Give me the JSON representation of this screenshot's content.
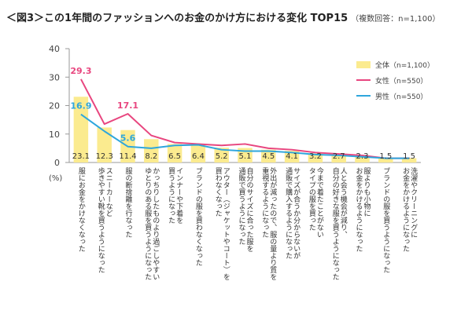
{
  "header": {
    "title": "＜図3＞この1年間のファッションへのお金のかけ方における変化 TOP15",
    "note": "（複数回答：n=1,100）"
  },
  "unit_label": "(%)",
  "colors": {
    "bar": "#fbeb8f",
    "female": "#e8467f",
    "male": "#2ea6dc",
    "axis": "#999999",
    "female_label": "#e8467f",
    "male_label": "#2ea6dc"
  },
  "legend": {
    "total": "全体（n=1,100）",
    "female": "女性（n=550）",
    "male": "男性（n=550）"
  },
  "chart_data": {
    "type": "bar",
    "ylim": [
      0,
      40
    ],
    "yticks": [
      "0",
      "10",
      "20",
      "30",
      "40"
    ],
    "categories": [
      "服にお金をかけなくなった",
      "スニーカーなど歩きやすい靴を買うようになった",
      "服の断捨離を行なった",
      "かっちりしたものより過ごしやすいゆとりのある服を買うようになった",
      "インナーや下着を買うようになった",
      "ブランドの服を買わなくなった",
      "アウター（ジャケットやコート）を買わなくなった",
      "自分のサイズに合った服を通販で買うようになった",
      "外出が減ったので、服の量より質を重視するようになった",
      "サイズが合うか分からないが通販で購入するようになった",
      "今まで着たことがないタイプの服を買った",
      "人と会う機会が減り、自分の好きな服を買うようになった",
      "服よりも小物にお金をかけるようになった",
      "ブランドの服を買うようになった",
      "洗濯やクリーニングにお金をかけるようになった"
    ],
    "category_lines": [
      [
        "服にお金をかけなくなった"
      ],
      [
        "スニーカーなど",
        "歩きやすい靴を買うようになった"
      ],
      [
        "服の断捨離を行なった"
      ],
      [
        "かっちりしたものより過ごしやすい",
        "ゆとりのある服を買うようになった"
      ],
      [
        "インナーや下着を",
        "買うようになった"
      ],
      [
        "ブランドの服を買わなくなった"
      ],
      [
        "アウター（ジャケットやコート）を",
        "買わなくなった"
      ],
      [
        "自分のサイズに合った服を",
        "通販で買うようになった"
      ],
      [
        "外出が減ったので、服の量より質を",
        "重視するようになった"
      ],
      [
        "サイズが合うか分からないが",
        "通販で購入するようになった"
      ],
      [
        "今まで着たことがない",
        "タイプの服を買った"
      ],
      [
        "人と会う機会が減り、",
        "自分の好きな服を買うようになった"
      ],
      [
        "服よりも小物に",
        "お金をかけるようになった"
      ],
      [
        "ブランドの服を買うようになった"
      ],
      [
        "洗濯やクリーニングに",
        "お金をかけるようになった"
      ]
    ],
    "series": [
      {
        "name": "全体（n=1,100）",
        "kind": "bar",
        "values": [
          23.1,
          12.3,
          11.4,
          8.2,
          6.5,
          6.4,
          5.2,
          5.1,
          4.5,
          4.1,
          3.2,
          2.7,
          2.3,
          1.5,
          1.5
        ]
      },
      {
        "name": "女性（n=550）",
        "kind": "line",
        "values": [
          29.3,
          13.5,
          17.1,
          9.5,
          7.0,
          6.5,
          6.0,
          6.5,
          5.0,
          4.5,
          3.5,
          3.0,
          2.5,
          1.5,
          1.5
        ]
      },
      {
        "name": "男性（n=550）",
        "kind": "line",
        "values": [
          16.9,
          11.0,
          5.6,
          5.0,
          6.0,
          6.2,
          4.5,
          4.0,
          4.0,
          3.5,
          2.8,
          2.5,
          2.0,
          1.5,
          1.5
        ]
      }
    ],
    "highlighted_labels": [
      {
        "series": "女性（n=550）",
        "index": 0,
        "text": "29.3"
      },
      {
        "series": "女性（n=550）",
        "index": 2,
        "text": "17.1"
      },
      {
        "series": "男性（n=550）",
        "index": 0,
        "text": "16.9"
      },
      {
        "series": "男性（n=550）",
        "index": 2,
        "text": "5.6"
      }
    ],
    "grid": false,
    "legend_position": "right"
  }
}
